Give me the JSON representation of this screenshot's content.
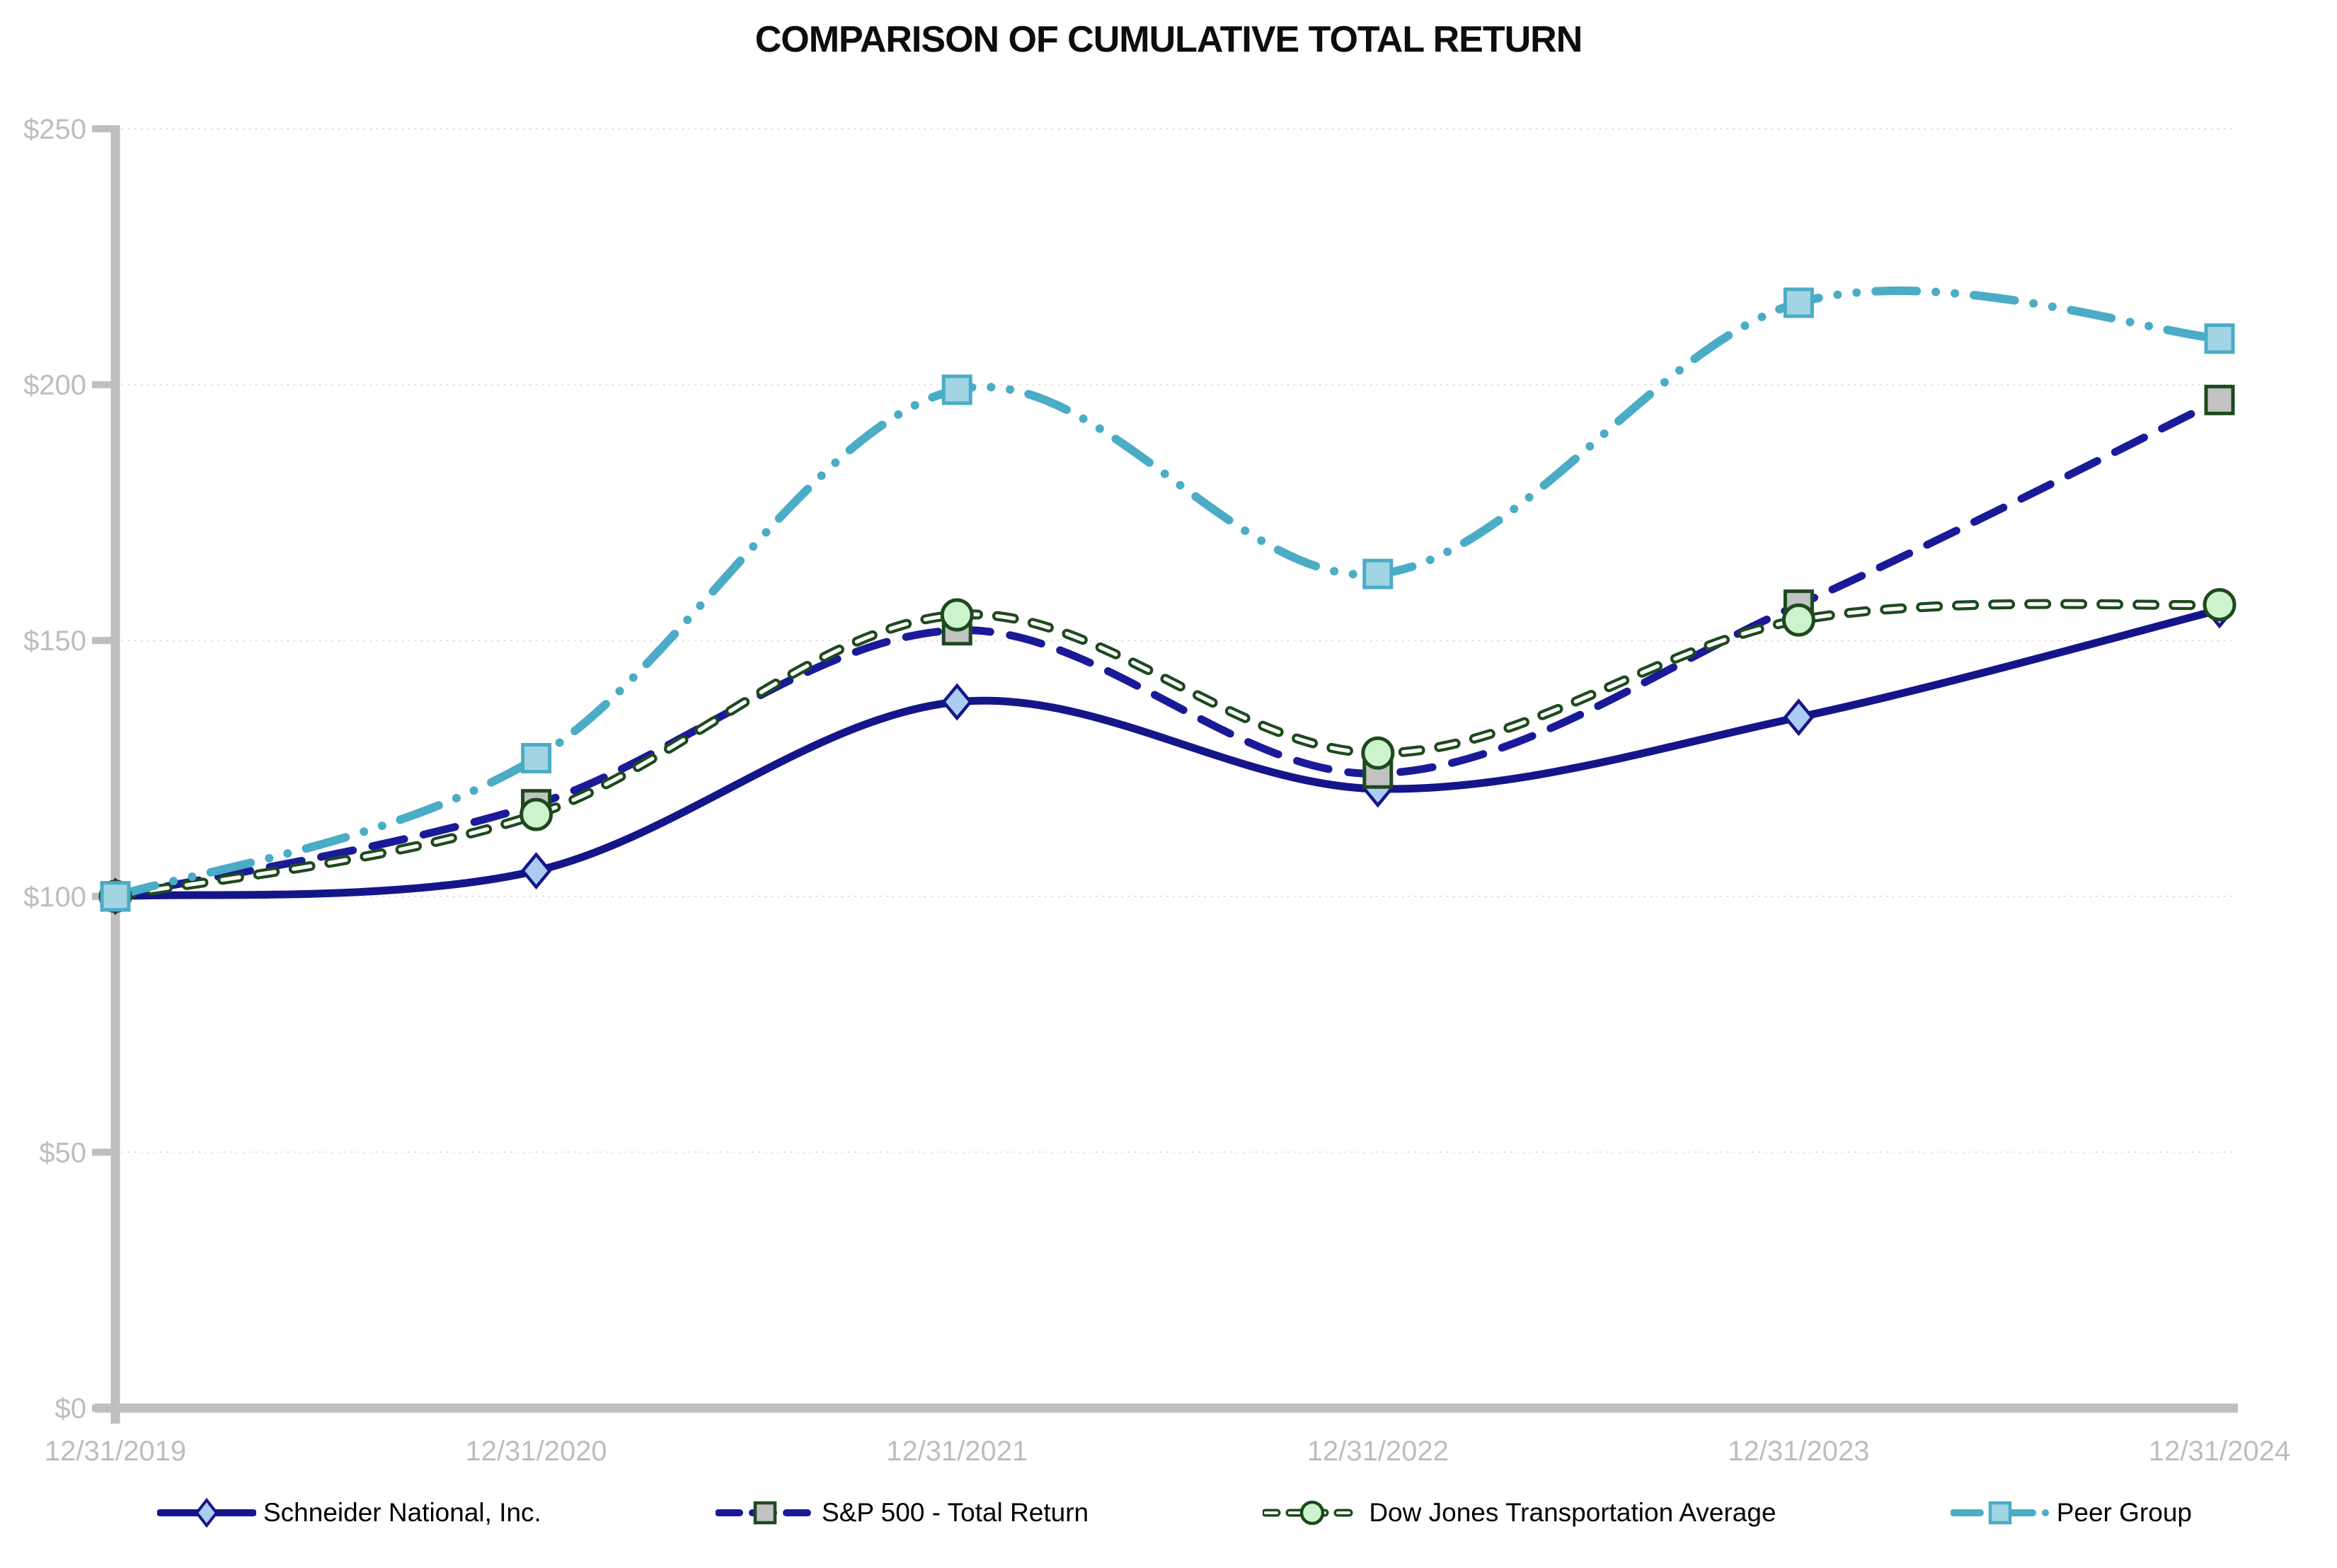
{
  "chart_data": {
    "type": "line",
    "title": "COMPARISON OF CUMULATIVE TOTAL RETURN",
    "categories": [
      "12/31/2019",
      "12/31/2020",
      "12/31/2021",
      "12/31/2022",
      "12/31/2023",
      "12/31/2024"
    ],
    "series": [
      {
        "name": "Schneider National, Inc.",
        "values": [
          100,
          105,
          138,
          121,
          135,
          156
        ],
        "color": "#15158A",
        "line_style": "solid",
        "marker": "diamond",
        "marker_fill": "#ABCDF2",
        "marker_stroke": "#15158A"
      },
      {
        "name": "S&P 500 - Total Return",
        "values": [
          100,
          118,
          152,
          124,
          157,
          197
        ],
        "color": "#1A1A99",
        "line_style": "long-dash",
        "marker": "square",
        "marker_fill": "#C2C2C2",
        "marker_stroke": "#1D4A1D"
      },
      {
        "name": "Dow Jones Transportation Average",
        "values": [
          100,
          116,
          155,
          128,
          154,
          157
        ],
        "color": "#1D4A1D",
        "line_style": "pill-dash",
        "marker": "circle",
        "marker_fill": "#CCF3CC",
        "marker_stroke": "#1D4A1D"
      },
      {
        "name": "Peer Group",
        "values": [
          100,
          127,
          199,
          163,
          216,
          209
        ],
        "color": "#4BACC6",
        "line_style": "dash-dot-dot",
        "marker": "square",
        "marker_fill": "#A2D4E4",
        "marker_stroke": "#4BACC6"
      }
    ],
    "ylim": [
      0,
      250
    ],
    "ytick_step": 50,
    "ytick_labels": [
      "$0",
      "$50",
      "$100",
      "$150",
      "$200",
      "$250"
    ],
    "grid": "horizontal dotted",
    "legend_position": "bottom",
    "smoothed": true
  },
  "style_colors": {
    "axis": "#BFBFBF",
    "tick_label": "#BDBDBD",
    "gridline": "#D9D9D9",
    "legend_text": "#000000"
  }
}
